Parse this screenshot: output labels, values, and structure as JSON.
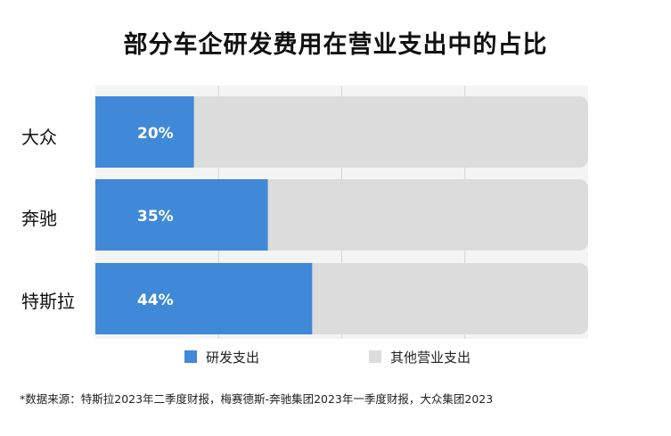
{
  "chart_data": {
    "type": "bar",
    "stacked": true,
    "orientation": "horizontal",
    "title": "部分车企研发费用在营业支出中的占比",
    "categories": [
      "大众",
      "奔驰",
      "特斯拉"
    ],
    "series": [
      {
        "name": "研发支出",
        "values": [
          20,
          35,
          44
        ],
        "color": "#4088d8"
      },
      {
        "name": "其他营业支出",
        "values": [
          80,
          65,
          56
        ],
        "color": "#dcdcdc"
      }
    ],
    "data_labels": [
      "20%",
      "35%",
      "44%"
    ],
    "xlim": [
      0,
      100
    ],
    "grid": true,
    "legend_position": "bottom"
  },
  "legend": {
    "rd": "研发支出",
    "other": "其他营业支出"
  },
  "footnote": "*数据来源：特斯拉2023年二季度财报，梅赛德斯-奔驰集团2023年一季度财报，大众集团2023"
}
